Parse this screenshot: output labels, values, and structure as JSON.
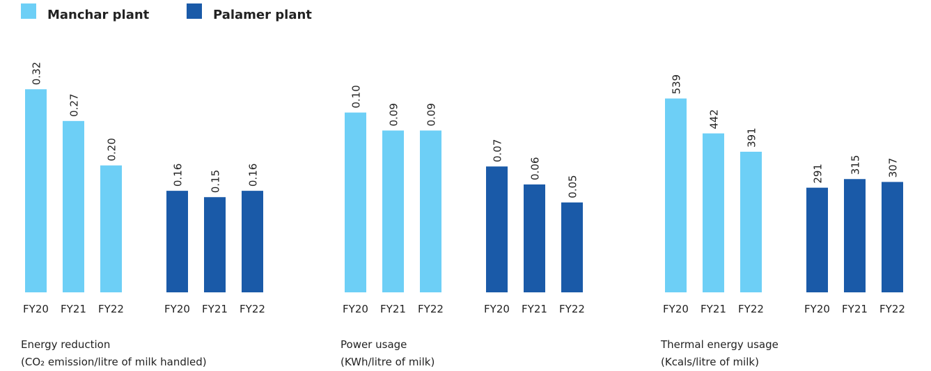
{
  "legend": [
    {
      "name": "Manchar plant",
      "color": "#6dcff6"
    },
    {
      "name": "Palamer plant",
      "color": "#1a5aa8"
    }
  ],
  "chart_data": [
    {
      "type": "bar",
      "title": "Energy reduction",
      "subtitle": "(CO₂ emission/litre of milk handled)",
      "categories": [
        "FY20",
        "FY21",
        "FY22"
      ],
      "ylim": [
        0,
        0.34
      ],
      "series": [
        {
          "values": [
            0.32,
            0.27,
            0.2
          ],
          "value_labels": [
            "0.32",
            "0.27",
            "0.20"
          ]
        },
        {
          "values": [
            0.16,
            0.15,
            0.16
          ],
          "value_labels": [
            "0.16",
            "0.15",
            "0.16"
          ]
        }
      ]
    },
    {
      "type": "bar",
      "title": "Power usage",
      "subtitle": "(KWh/litre of milk)",
      "categories": [
        "FY20",
        "FY21",
        "FY22"
      ],
      "ylim": [
        0,
        0.12
      ],
      "series": [
        {
          "values": [
            0.1,
            0.09,
            0.09
          ],
          "value_labels": [
            "0.10",
            "0.09",
            "0.09"
          ]
        },
        {
          "values": [
            0.07,
            0.06,
            0.05
          ],
          "value_labels": [
            "0.07",
            "0.06",
            "0.05"
          ]
        }
      ]
    },
    {
      "type": "bar",
      "title": "Thermal energy usage",
      "subtitle": "(Kcals/litre of milk)",
      "categories": [
        "FY20",
        "FY21",
        "FY22"
      ],
      "ylim": [
        0,
        600
      ],
      "series": [
        {
          "values": [
            539,
            442,
            391
          ]
        },
        {
          "values": [
            291,
            315,
            307
          ]
        }
      ]
    }
  ]
}
